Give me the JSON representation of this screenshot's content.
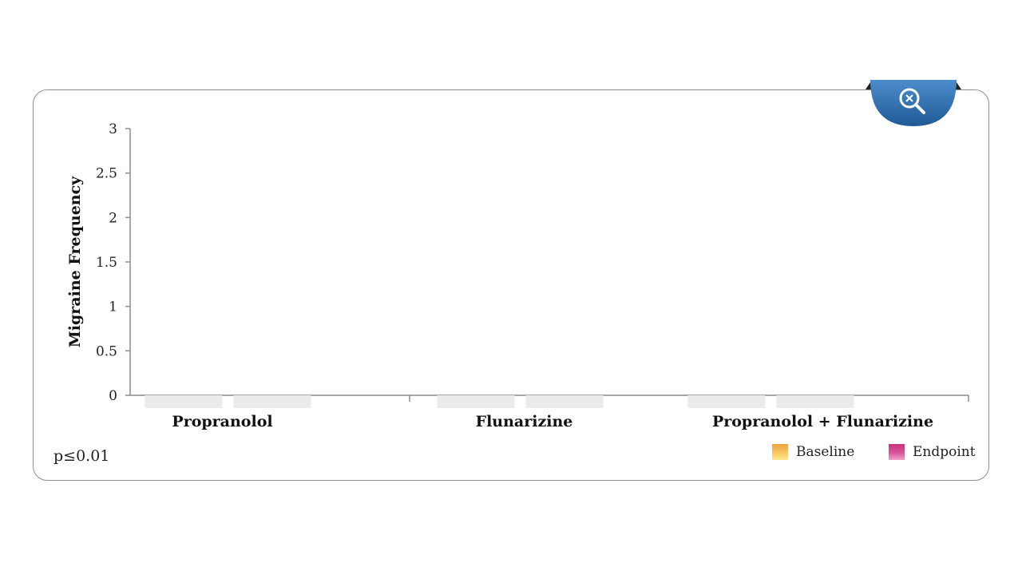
{
  "chart_data": {
    "type": "bar",
    "categories": [
      "Propranolol",
      "Flunarizine",
      "Propranolol + Flunarizine"
    ],
    "series": [
      {
        "name": "Baseline",
        "values": [
          0,
          0,
          0
        ]
      },
      {
        "name": "Endpoint",
        "values": [
          0,
          0,
          0
        ]
      }
    ],
    "ylabel": "Migraine Frequency",
    "yticks": [
      "0",
      "0.5",
      "1",
      "1.5",
      "2",
      "2.5",
      "3"
    ],
    "ylim": [
      0,
      3
    ],
    "grid": false,
    "legend_position": "bottom-right",
    "annotation": "p≤0.01",
    "colors": {
      "Baseline": "#f5b84a",
      "Endpoint": "#d2448c",
      "axis": "#8c8c8c",
      "empty_bar": "#ebebeb"
    }
  },
  "zoom_button": {
    "icon": "zoom-close-icon",
    "color": "#2a6aa8"
  }
}
